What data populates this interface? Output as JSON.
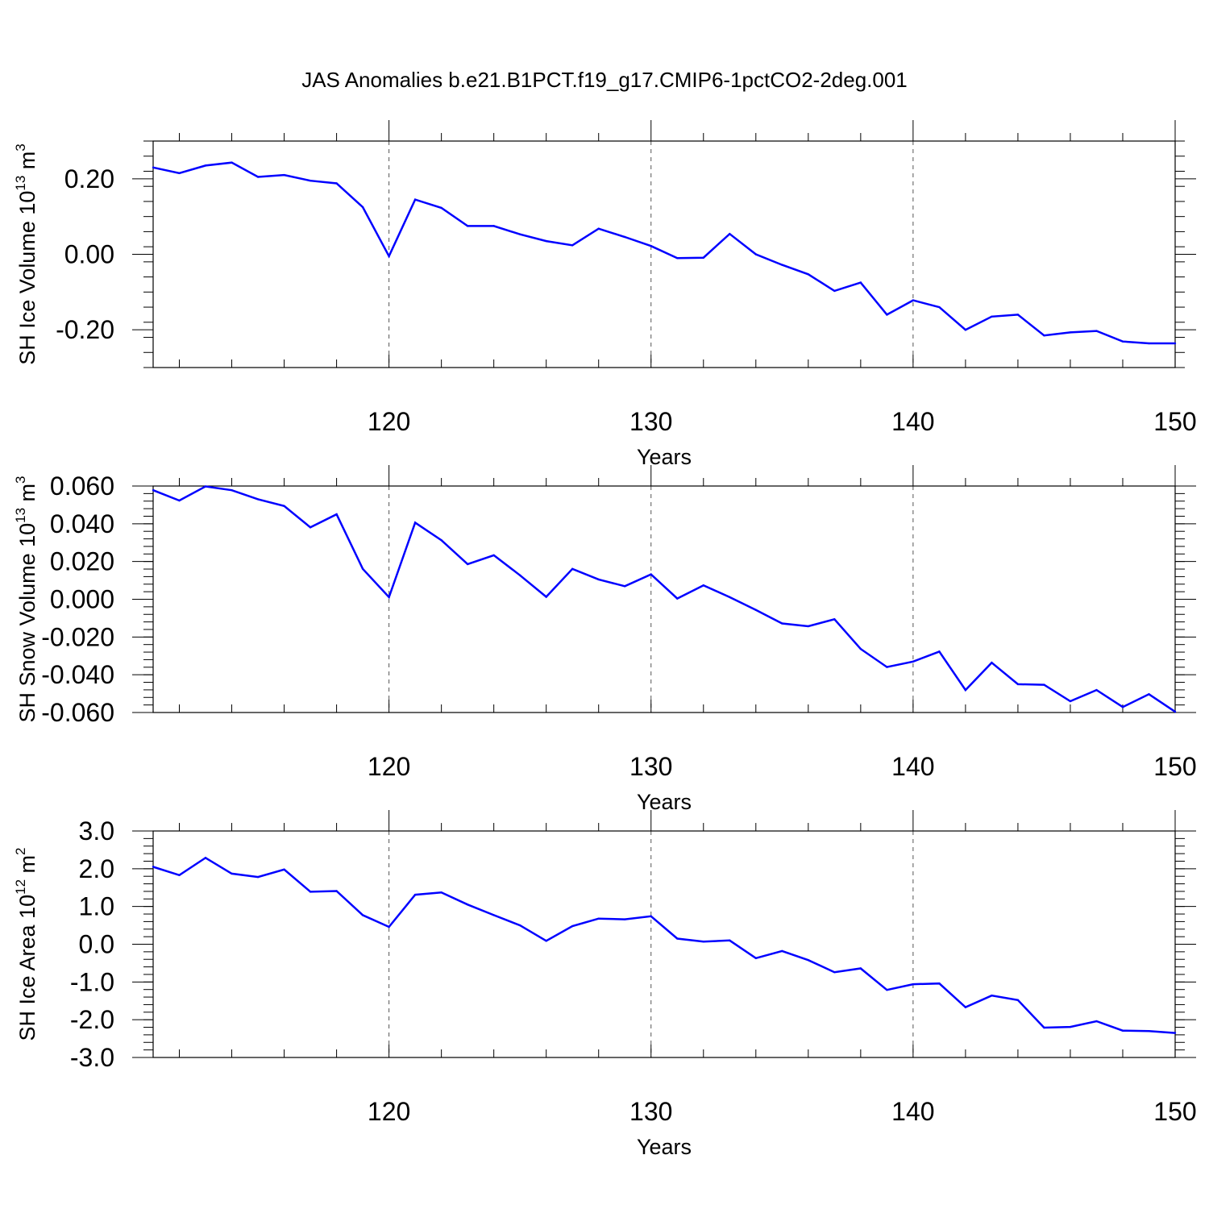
{
  "title": "JAS Anomalies b.e21.B1PCT.f19_g17.CMIP6-1pctCO2-2deg.001",
  "colors": {
    "line": "#0000ff",
    "axis": "#000000",
    "grid": "#555555"
  },
  "chart_data": [
    {
      "type": "line",
      "ylabel": "SH Ice Volume 10",
      "ylabel_exp": "13",
      "ylabel_unit": " m",
      "ylabel_unit_exp": "3",
      "xlabel": "Years",
      "xlim": [
        111,
        150
      ],
      "ylim": [
        -0.3,
        0.3
      ],
      "xticks": [
        120,
        130,
        140,
        150
      ],
      "xtick_labels": [
        "120",
        "130",
        "140",
        "150"
      ],
      "yticks": [
        0.2,
        0.0,
        -0.2
      ],
      "ytick_labels": [
        "0.20",
        "0.00",
        "-0.20"
      ],
      "grid": "vertical dashed at 120, 130, 140",
      "x": [
        111,
        112,
        113,
        114,
        115,
        116,
        117,
        118,
        119,
        120,
        121,
        122,
        123,
        124,
        125,
        126,
        127,
        128,
        129,
        130,
        131,
        132,
        133,
        134,
        135,
        136,
        137,
        138,
        139,
        140,
        141,
        142,
        143,
        144,
        145,
        146,
        147,
        148,
        149,
        150
      ],
      "values": [
        0.23,
        0.215,
        0.235,
        0.243,
        0.205,
        0.21,
        0.195,
        0.188,
        0.125,
        -0.005,
        0.145,
        0.123,
        0.075,
        0.075,
        0.053,
        0.035,
        0.024,
        0.068,
        0.046,
        0.022,
        -0.01,
        -0.009,
        0.054,
        0.0,
        -0.028,
        -0.053,
        -0.097,
        -0.075,
        -0.16,
        -0.122,
        -0.14,
        -0.2,
        -0.165,
        -0.16,
        -0.215,
        -0.207,
        -0.203,
        -0.231,
        -0.236,
        -0.236
      ]
    },
    {
      "type": "line",
      "ylabel": "SH Snow Volume 10",
      "ylabel_exp": "13",
      "ylabel_unit": " m",
      "ylabel_unit_exp": "3",
      "xlabel": "Years",
      "xlim": [
        111,
        150
      ],
      "ylim": [
        -0.06,
        0.06
      ],
      "xticks": [
        120,
        130,
        140,
        150
      ],
      "xtick_labels": [
        "120",
        "130",
        "140",
        "150"
      ],
      "yticks": [
        0.06,
        0.04,
        0.02,
        0.0,
        -0.02,
        -0.04,
        -0.06
      ],
      "ytick_labels": [
        "0.060",
        "0.040",
        "0.020",
        "0.000",
        "-0.020",
        "-0.040",
        "-0.060"
      ],
      "grid": "vertical dashed at 120, 130, 140",
      "x": [
        111,
        112,
        113,
        114,
        115,
        116,
        117,
        118,
        119,
        120,
        121,
        122,
        123,
        124,
        125,
        126,
        127,
        128,
        129,
        130,
        131,
        132,
        133,
        134,
        135,
        136,
        137,
        138,
        139,
        140,
        141,
        142,
        143,
        144,
        145,
        146,
        147,
        148,
        149,
        150
      ],
      "values": [
        0.0578,
        0.0523,
        0.0598,
        0.0578,
        0.053,
        0.0494,
        0.0381,
        0.045,
        0.0161,
        0.0011,
        0.0406,
        0.0313,
        0.0186,
        0.0233,
        0.0127,
        0.0013,
        0.0161,
        0.0105,
        0.0069,
        0.0132,
        0.0004,
        0.0074,
        0.0011,
        -0.0057,
        -0.0128,
        -0.0143,
        -0.0106,
        -0.0263,
        -0.0359,
        -0.033,
        -0.0277,
        -0.0481,
        -0.0336,
        -0.045,
        -0.0453,
        -0.054,
        -0.0481,
        -0.0571,
        -0.0503,
        -0.0596
      ]
    },
    {
      "type": "line",
      "ylabel": "SH Ice Area 10",
      "ylabel_exp": "12",
      "ylabel_unit": " m",
      "ylabel_unit_exp": "2",
      "xlabel": "Years",
      "xlim": [
        111,
        150
      ],
      "ylim": [
        -3.0,
        3.0
      ],
      "xticks": [
        120,
        130,
        140,
        150
      ],
      "xtick_labels": [
        "120",
        "130",
        "140",
        "150"
      ],
      "yticks": [
        3.0,
        2.0,
        1.0,
        0.0,
        -1.0,
        -2.0,
        -3.0
      ],
      "ytick_labels": [
        "3.0",
        "2.0",
        "1.0",
        "0.0",
        "-1.0",
        "-2.0",
        "-3.0"
      ],
      "grid": "vertical dashed at 120, 130, 140",
      "x": [
        111,
        112,
        113,
        114,
        115,
        116,
        117,
        118,
        119,
        120,
        121,
        122,
        123,
        124,
        125,
        126,
        127,
        128,
        129,
        130,
        131,
        132,
        133,
        134,
        135,
        136,
        137,
        138,
        139,
        140,
        141,
        142,
        143,
        144,
        145,
        146,
        147,
        148,
        149,
        150
      ],
      "values": [
        2.05,
        1.83,
        2.29,
        1.87,
        1.78,
        1.98,
        1.39,
        1.41,
        0.77,
        0.46,
        1.31,
        1.37,
        1.05,
        0.77,
        0.5,
        0.09,
        0.48,
        0.68,
        0.66,
        0.74,
        0.15,
        0.07,
        0.1,
        -0.37,
        -0.18,
        -0.42,
        -0.74,
        -0.64,
        -1.21,
        -1.06,
        -1.04,
        -1.67,
        -1.36,
        -1.48,
        -2.21,
        -2.19,
        -2.04,
        -2.29,
        -2.3,
        -2.35
      ]
    }
  ]
}
